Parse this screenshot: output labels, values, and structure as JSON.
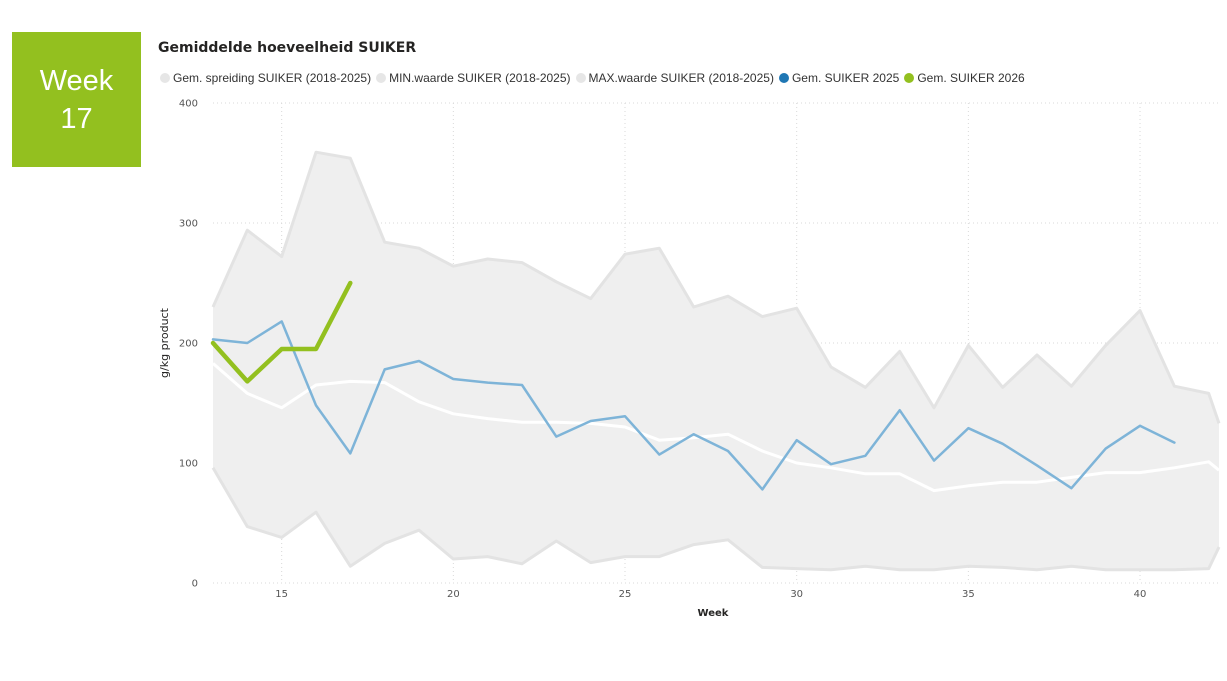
{
  "badge": {
    "line1": "Week",
    "line2": "17"
  },
  "chart_data": {
    "type": "line",
    "title": "Gemiddelde hoeveelheid SUIKER",
    "xlabel": "Week",
    "ylabel": "g/kg product",
    "xlim": [
      13,
      42.3
    ],
    "ylim": [
      0,
      400
    ],
    "xticks": [
      15,
      20,
      25,
      30,
      35,
      40
    ],
    "yticks": [
      0,
      100,
      200,
      300,
      400
    ],
    "grid": true,
    "legend_position": "top-left",
    "legend": [
      {
        "label": "Gem. spreiding SUIKER (2018-2025)",
        "color": "#e6e6e6"
      },
      {
        "label": "MIN.waarde SUIKER (2018-2025)",
        "color": "#e6e6e6"
      },
      {
        "label": "MAX.waarde SUIKER (2018-2025)",
        "color": "#e6e6e6"
      },
      {
        "label": "Gem. SUIKER 2025",
        "color": "#1f77b4"
      },
      {
        "label": "Gem. SUIKER 2026",
        "color": "#93c01f"
      }
    ],
    "band": {
      "x": [
        13,
        14,
        15,
        16,
        17,
        18,
        19,
        20,
        21,
        22,
        23,
        24,
        25,
        26,
        27,
        28,
        29,
        30,
        31,
        32,
        33,
        34,
        35,
        36,
        37,
        38,
        39,
        40,
        41,
        42,
        42.3
      ],
      "min": [
        96,
        47,
        38,
        59,
        14,
        33,
        44,
        20,
        22,
        16,
        35,
        17,
        22,
        22,
        32,
        36,
        13,
        12,
        11,
        14,
        11,
        11,
        14,
        13,
        11,
        14,
        11,
        11,
        11,
        12,
        30
      ],
      "max": [
        230,
        294,
        272,
        359,
        354,
        284,
        279,
        264,
        270,
        267,
        251,
        237,
        274,
        279,
        230,
        239,
        222,
        229,
        180,
        163,
        193,
        146,
        198,
        163,
        190,
        164,
        198,
        227,
        164,
        158,
        133
      ],
      "avg": [
        183,
        158,
        146,
        165,
        168,
        167,
        151,
        141,
        137,
        134,
        134,
        133,
        130,
        119,
        121,
        124,
        110,
        100,
        96,
        91,
        91,
        77,
        81,
        84,
        84,
        88,
        92,
        92,
        96,
        101,
        94
      ]
    },
    "series": [
      {
        "name": "Gem. SUIKER 2025",
        "color": "#7eb4d8",
        "x": [
          13,
          14,
          15,
          16,
          17,
          18,
          19,
          20,
          21,
          22,
          23,
          24,
          25,
          26,
          27,
          28,
          29,
          30,
          31,
          32,
          33,
          34,
          35,
          36,
          37,
          38,
          39,
          40,
          41
        ],
        "y": [
          203,
          200,
          218,
          148,
          108,
          178,
          185,
          170,
          167,
          165,
          122,
          135,
          139,
          107,
          124,
          110,
          78,
          119,
          99,
          106,
          144,
          102,
          129,
          116,
          98,
          79,
          112,
          131,
          117
        ]
      },
      {
        "name": "Gem. SUIKER 2026",
        "color": "#93c01f",
        "x": [
          13,
          14,
          15,
          16,
          17
        ],
        "y": [
          200,
          168,
          195,
          195,
          250
        ]
      }
    ]
  }
}
